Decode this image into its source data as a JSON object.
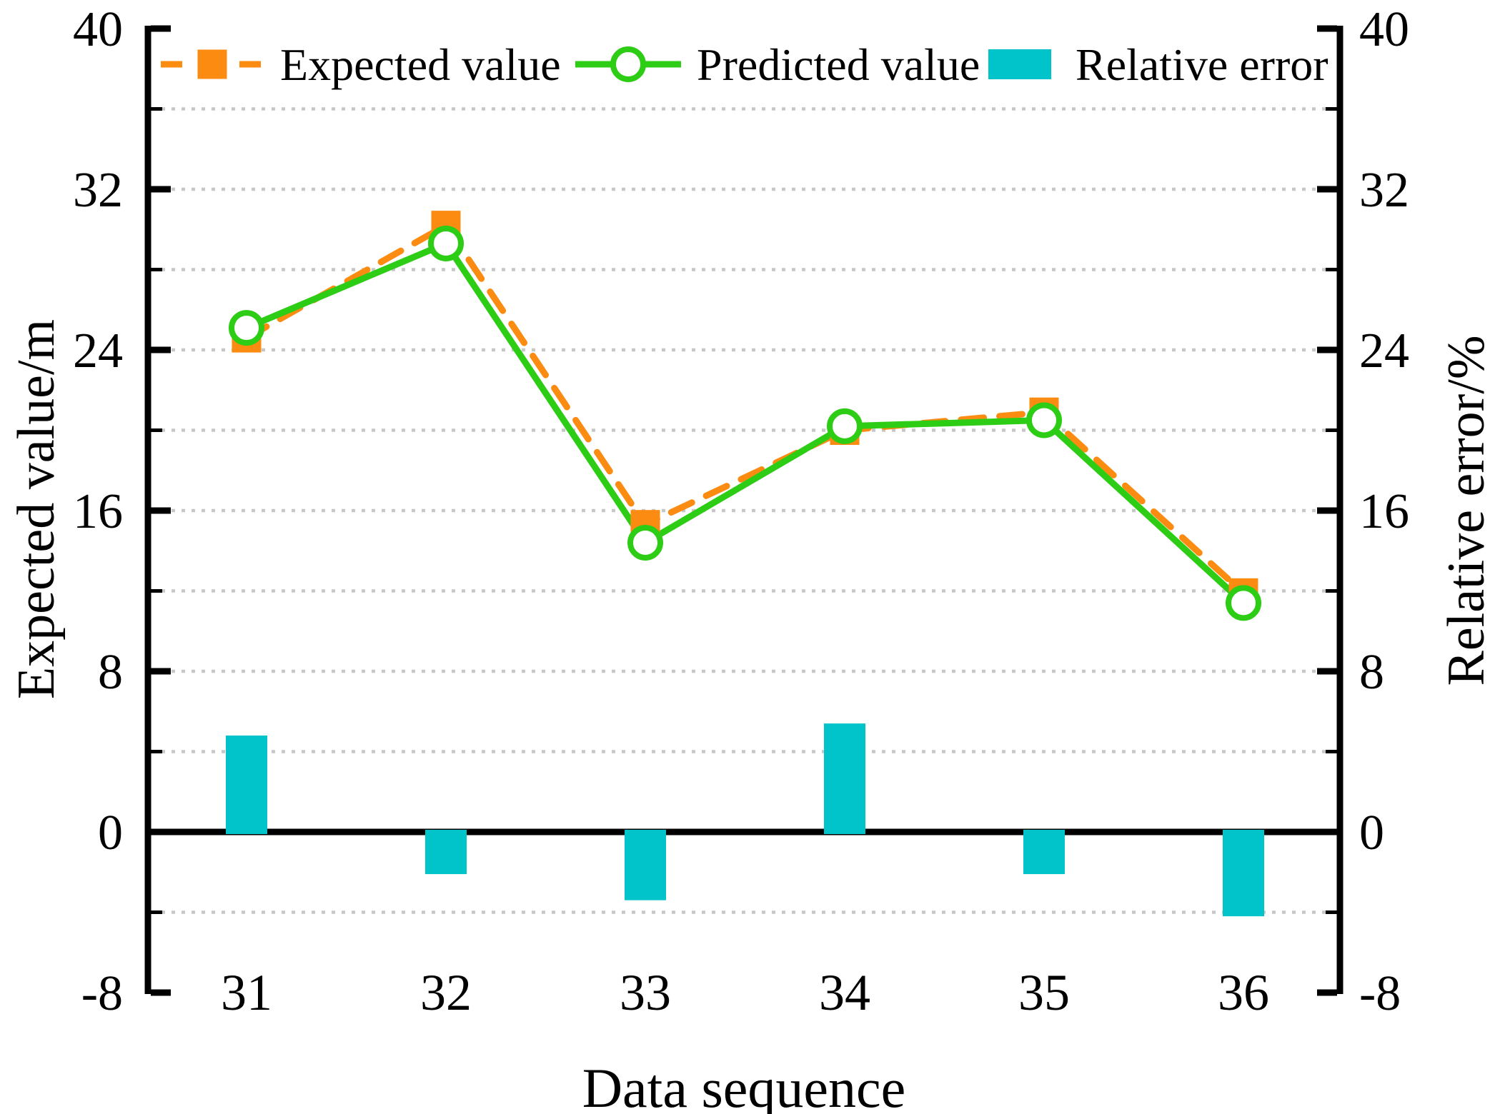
{
  "figure": {
    "background": "#ffffff",
    "axis_color": "#000000"
  },
  "chart_data": {
    "type": "combo-line-bar",
    "xlabel": "Data sequence",
    "ylabel_left": "Expected value/m",
    "ylabel_right": "Relative error/%",
    "categories": [
      "31",
      "32",
      "33",
      "34",
      "35",
      "36"
    ],
    "ylim": [
      -8,
      40
    ],
    "yticks_major": [
      40,
      32,
      24,
      16,
      8,
      0,
      -8
    ],
    "yticks_minor": [
      36,
      28,
      20,
      12,
      4,
      -4
    ],
    "gridline_values": [
      36,
      32,
      28,
      24,
      20,
      16,
      12,
      8,
      4,
      -4
    ],
    "grid": {
      "style": "dotted",
      "color": "#c7c7c7"
    },
    "legend_position": "top",
    "series": [
      {
        "name": "Expected value",
        "type": "line",
        "line_style": "dashed",
        "marker": "filled-square",
        "color": "#fb8b11",
        "axis": "left",
        "values": [
          24.6,
          30.2,
          15.3,
          20.0,
          20.9,
          11.9
        ]
      },
      {
        "name": "Predicted value",
        "type": "line",
        "line_style": "solid",
        "marker": "open-circle",
        "marker_fill": "#ffffff",
        "color": "#2ccd14",
        "axis": "left",
        "values": [
          25.1,
          29.3,
          14.4,
          20.2,
          20.5,
          11.4
        ]
      },
      {
        "name": "Relative error",
        "type": "bar",
        "color": "#00c4c9",
        "axis": "right",
        "values": [
          4.8,
          -2.1,
          -3.4,
          5.4,
          -2.1,
          -4.2
        ]
      }
    ]
  }
}
